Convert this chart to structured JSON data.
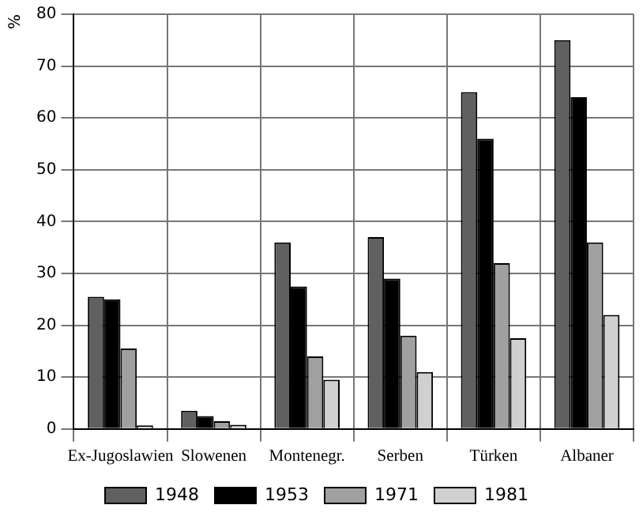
{
  "chart_data": {
    "type": "bar",
    "ylabel": "%",
    "categories": [
      "Ex-Jugoslawien",
      "Slowenen",
      "Montenegr.",
      "Serben",
      "Türken",
      "Albaner"
    ],
    "series": [
      {
        "name": "1948",
        "color": "#606060",
        "values": [
          25.5,
          3.5,
          36,
          37,
          65,
          75
        ]
      },
      {
        "name": "1953",
        "color": "#000000",
        "values": [
          25,
          2.5,
          27.5,
          29,
          56,
          64
        ]
      },
      {
        "name": "1971",
        "color": "#a0a0a0",
        "values": [
          15.5,
          1.5,
          14,
          18,
          32,
          36
        ]
      },
      {
        "name": "1981",
        "color": "#d0d0d0",
        "values": [
          0.7,
          0.8,
          9.5,
          11,
          17.5,
          22
        ]
      }
    ],
    "ylim": [
      0,
      80
    ],
    "yticks": [
      0,
      10,
      20,
      30,
      40,
      50,
      60,
      70,
      80
    ],
    "grid": true,
    "legend": "bottom"
  }
}
